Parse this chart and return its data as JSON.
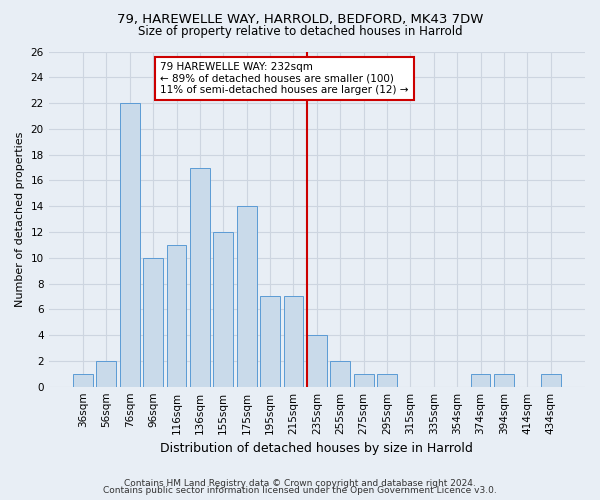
{
  "title_line1": "79, HAREWELLE WAY, HARROLD, BEDFORD, MK43 7DW",
  "title_line2": "Size of property relative to detached houses in Harrold",
  "xlabel": "Distribution of detached houses by size in Harrold",
  "ylabel": "Number of detached properties",
  "footer_line1": "Contains HM Land Registry data © Crown copyright and database right 2024.",
  "footer_line2": "Contains public sector information licensed under the Open Government Licence v3.0.",
  "bar_labels": [
    "36sqm",
    "56sqm",
    "76sqm",
    "96sqm",
    "116sqm",
    "136sqm",
    "155sqm",
    "175sqm",
    "195sqm",
    "215sqm",
    "235sqm",
    "255sqm",
    "275sqm",
    "295sqm",
    "315sqm",
    "335sqm",
    "354sqm",
    "374sqm",
    "394sqm",
    "414sqm",
    "434sqm"
  ],
  "bar_values": [
    1,
    2,
    22,
    10,
    11,
    17,
    12,
    14,
    7,
    7,
    4,
    2,
    1,
    1,
    0,
    0,
    0,
    1,
    1,
    0,
    1
  ],
  "bar_color": "#c9daea",
  "bar_edge_color": "#5b9bd5",
  "red_line_bar_index": 10,
  "annotation_text": "79 HAREWELLE WAY: 232sqm\n← 89% of detached houses are smaller (100)\n11% of semi-detached houses are larger (12) →",
  "annotation_box_color": "#ffffff",
  "annotation_box_edge": "#cc0000",
  "ylim": [
    0,
    26
  ],
  "yticks": [
    0,
    2,
    4,
    6,
    8,
    10,
    12,
    14,
    16,
    18,
    20,
    22,
    24,
    26
  ],
  "grid_color": "#cdd5e0",
  "bg_color": "#e8eef5",
  "title1_fontsize": 9.5,
  "title2_fontsize": 8.5,
  "ylabel_fontsize": 8,
  "xlabel_fontsize": 9,
  "tick_fontsize": 7.5,
  "footer_fontsize": 6.5,
  "ann_fontsize": 7.5
}
